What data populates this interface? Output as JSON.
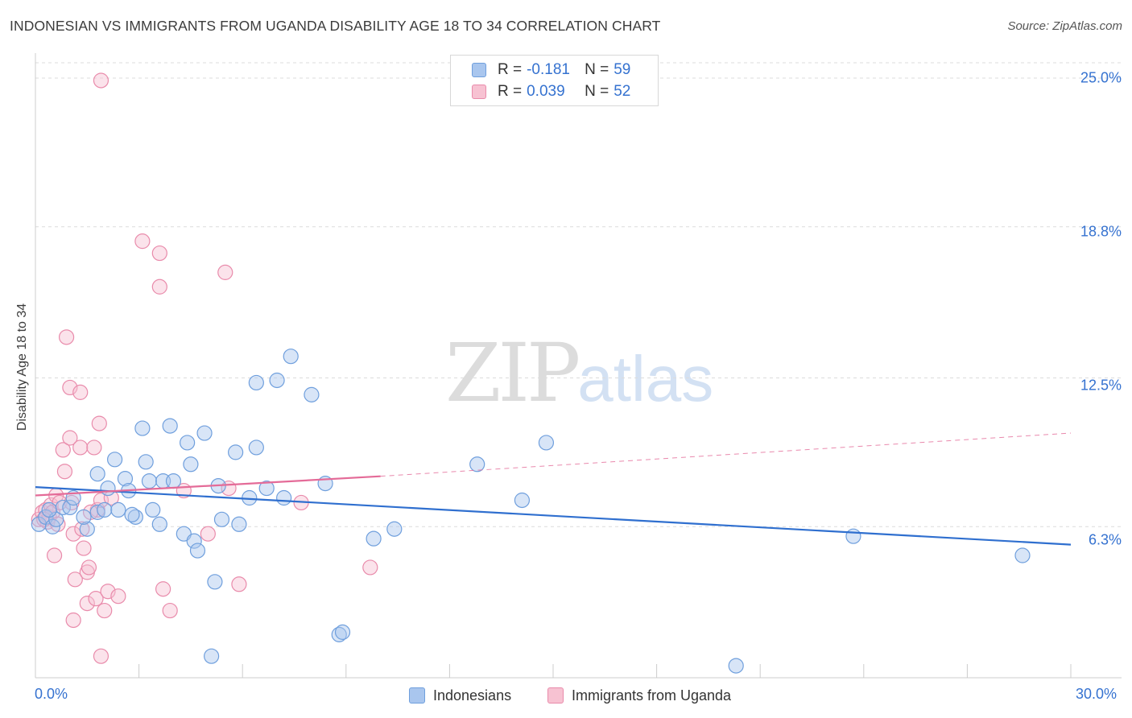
{
  "title": "INDONESIAN VS IMMIGRANTS FROM UGANDA DISABILITY AGE 18 TO 34 CORRELATION CHART",
  "source": "Source: ZipAtlas.com",
  "watermark": {
    "zip": "ZIP",
    "atlas": "atlas"
  },
  "legend": {
    "r_label": "R =",
    "n_label": "N =",
    "rows": [
      {
        "series": "Indonesians",
        "r": "-0.181",
        "n": "59",
        "color": "#a9c6ee",
        "border": "#6f9fdd"
      },
      {
        "series": "Immigrants from Uganda",
        "r": "0.039",
        "n": "52",
        "color": "#f7c2d2",
        "border": "#e98bab"
      }
    ]
  },
  "colors": {
    "blue_line": "#2f6fcf",
    "pink_line": "#e46b98",
    "blue_point": "#6f9fdd",
    "pink_point": "#e98bab",
    "axis_text": "#3572d0"
  },
  "chart_data": {
    "type": "scatter",
    "title": "INDONESIAN VS IMMIGRANTS FROM UGANDA DISABILITY AGE 18 TO 34 CORRELATION CHART",
    "xlabel": "",
    "ylabel": "Disability Age 18 to 34",
    "xlim": [
      0,
      30
    ],
    "ylim": [
      0,
      25
    ],
    "x_tick_labels": [
      "0.0%",
      "30.0%"
    ],
    "y_ticks": [
      6.3,
      12.5,
      18.8,
      25.0
    ],
    "y_tick_labels": [
      "6.3%",
      "12.5%",
      "18.8%",
      "25.0%"
    ],
    "grid": true,
    "series": [
      {
        "name": "Indonesians",
        "points": [
          [
            0.1,
            6.4
          ],
          [
            0.3,
            6.7
          ],
          [
            0.5,
            6.3
          ],
          [
            0.6,
            6.6
          ],
          [
            0.8,
            7.1
          ],
          [
            1.0,
            7.1
          ],
          [
            1.1,
            7.5
          ],
          [
            1.5,
            6.2
          ],
          [
            1.8,
            8.5
          ],
          [
            1.8,
            6.9
          ],
          [
            2.0,
            7.0
          ],
          [
            2.1,
            7.9
          ],
          [
            2.3,
            9.1
          ],
          [
            2.4,
            7.0
          ],
          [
            2.6,
            8.3
          ],
          [
            2.7,
            7.8
          ],
          [
            2.9,
            6.7
          ],
          [
            3.1,
            10.4
          ],
          [
            3.2,
            9.0
          ],
          [
            3.3,
            8.2
          ],
          [
            3.4,
            7.0
          ],
          [
            3.6,
            6.4
          ],
          [
            3.7,
            8.2
          ],
          [
            3.9,
            10.5
          ],
          [
            4.0,
            8.2
          ],
          [
            4.3,
            6.0
          ],
          [
            4.4,
            9.8
          ],
          [
            4.5,
            8.9
          ],
          [
            4.6,
            5.7
          ],
          [
            4.7,
            5.3
          ],
          [
            4.9,
            10.2
          ],
          [
            5.2,
            4.0
          ],
          [
            5.3,
            8.0
          ],
          [
            5.4,
            6.6
          ],
          [
            5.8,
            9.4
          ],
          [
            5.9,
            6.4
          ],
          [
            6.2,
            7.5
          ],
          [
            6.4,
            9.6
          ],
          [
            6.4,
            12.3
          ],
          [
            6.7,
            7.9
          ],
          [
            7.0,
            12.4
          ],
          [
            7.2,
            7.5
          ],
          [
            7.4,
            13.4
          ],
          [
            8.0,
            11.8
          ],
          [
            8.4,
            8.1
          ],
          [
            8.8,
            1.8
          ],
          [
            8.9,
            1.9
          ],
          [
            9.8,
            5.8
          ],
          [
            10.4,
            6.2
          ],
          [
            5.1,
            0.9
          ],
          [
            12.8,
            8.9
          ],
          [
            14.1,
            7.4
          ],
          [
            14.8,
            9.8
          ],
          [
            20.3,
            0.5
          ],
          [
            23.7,
            5.9
          ],
          [
            28.6,
            5.1
          ],
          [
            0.4,
            7.0
          ],
          [
            1.4,
            6.7
          ],
          [
            2.8,
            6.8
          ]
        ]
      },
      {
        "name": "Immigrants from Uganda",
        "points": [
          [
            1.9,
            24.9
          ],
          [
            0.1,
            6.6
          ],
          [
            0.2,
            6.9
          ],
          [
            0.3,
            7.0
          ],
          [
            0.35,
            6.5
          ],
          [
            0.4,
            6.7
          ],
          [
            0.45,
            7.2
          ],
          [
            0.5,
            6.9
          ],
          [
            0.55,
            5.1
          ],
          [
            0.6,
            7.6
          ],
          [
            0.65,
            6.4
          ],
          [
            0.7,
            7.3
          ],
          [
            0.8,
            9.5
          ],
          [
            0.85,
            8.6
          ],
          [
            0.9,
            14.2
          ],
          [
            1.0,
            12.1
          ],
          [
            1.0,
            10.0
          ],
          [
            1.05,
            7.3
          ],
          [
            1.1,
            6.0
          ],
          [
            1.15,
            4.1
          ],
          [
            1.1,
            2.4
          ],
          [
            1.3,
            11.9
          ],
          [
            1.3,
            9.6
          ],
          [
            1.35,
            6.2
          ],
          [
            1.4,
            5.4
          ],
          [
            1.5,
            4.4
          ],
          [
            1.5,
            3.1
          ],
          [
            1.55,
            4.6
          ],
          [
            1.7,
            9.6
          ],
          [
            1.75,
            3.3
          ],
          [
            1.8,
            7.0
          ],
          [
            1.85,
            10.6
          ],
          [
            1.9,
            7.4
          ],
          [
            2.0,
            2.8
          ],
          [
            2.1,
            3.6
          ],
          [
            1.9,
            0.9
          ],
          [
            2.2,
            7.5
          ],
          [
            2.4,
            3.4
          ],
          [
            3.1,
            18.2
          ],
          [
            3.6,
            17.7
          ],
          [
            3.6,
            16.3
          ],
          [
            3.7,
            3.7
          ],
          [
            3.9,
            2.8
          ],
          [
            4.3,
            7.8
          ],
          [
            5.0,
            6.0
          ],
          [
            5.5,
            16.9
          ],
          [
            5.6,
            7.9
          ],
          [
            5.9,
            3.9
          ],
          [
            7.7,
            7.3
          ],
          [
            9.7,
            4.6
          ],
          [
            1.6,
            6.9
          ],
          [
            0.25,
            6.6
          ]
        ]
      }
    ],
    "trend_lines": [
      {
        "series": "Indonesians",
        "x": [
          0,
          30
        ],
        "y": [
          7.95,
          5.55
        ],
        "style": "solid"
      },
      {
        "series": "Immigrants from Uganda",
        "x": [
          0,
          10
        ],
        "y": [
          7.6,
          8.4
        ],
        "style": "solid"
      },
      {
        "series": "Immigrants from Uganda",
        "x": [
          10,
          30
        ],
        "y": [
          8.4,
          10.2
        ],
        "style": "dashed"
      }
    ]
  }
}
